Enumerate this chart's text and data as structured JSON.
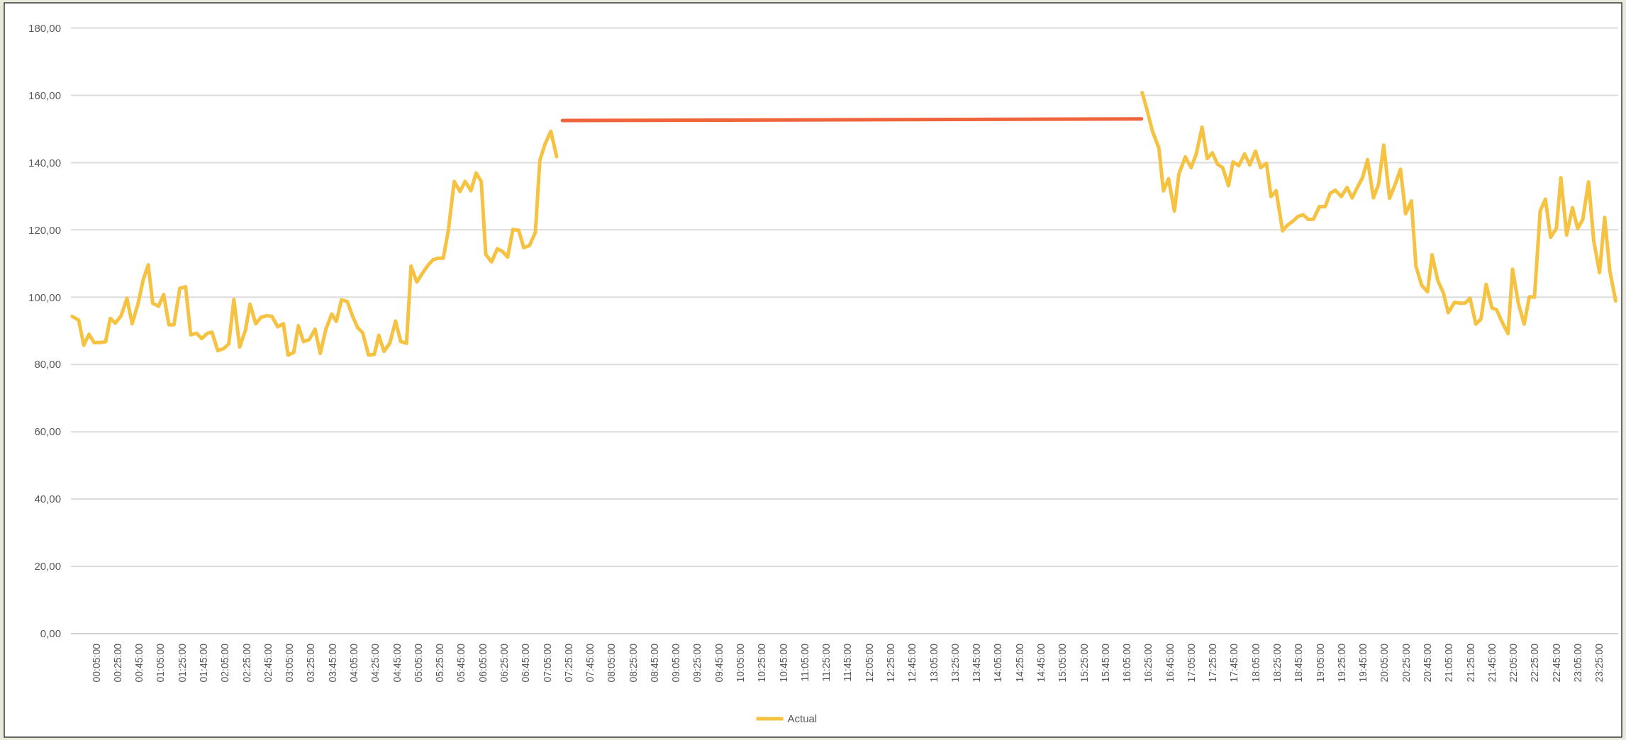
{
  "chart_data": {
    "type": "line",
    "xlim": [
      -0.31,
      23.71
    ],
    "ylim": [
      0,
      180
    ],
    "yticks": [
      {
        "value": 0,
        "label": "0,00"
      },
      {
        "value": 20,
        "label": "20,00"
      },
      {
        "value": 40,
        "label": "40,00"
      },
      {
        "value": 60,
        "label": "60,00"
      },
      {
        "value": 80,
        "label": "80,00"
      },
      {
        "value": 100,
        "label": "100,00"
      },
      {
        "value": 120,
        "label": "120,00"
      },
      {
        "value": 140,
        "label": "140,00"
      },
      {
        "value": 160,
        "label": "160,00"
      },
      {
        "value": 180,
        "label": "180,00"
      }
    ],
    "xticks": [
      {
        "value": 0.0833,
        "label": "00:05:00"
      },
      {
        "value": 0.4167,
        "label": "00:25:00"
      },
      {
        "value": 0.75,
        "label": "00:45:00"
      },
      {
        "value": 1.0833,
        "label": "01:05:00"
      },
      {
        "value": 1.4167,
        "label": "01:25:00"
      },
      {
        "value": 1.75,
        "label": "01:45:00"
      },
      {
        "value": 2.0833,
        "label": "02:05:00"
      },
      {
        "value": 2.4167,
        "label": "02:25:00"
      },
      {
        "value": 2.75,
        "label": "02:45:00"
      },
      {
        "value": 3.0833,
        "label": "03:05:00"
      },
      {
        "value": 3.4167,
        "label": "03:25:00"
      },
      {
        "value": 3.75,
        "label": "03:45:00"
      },
      {
        "value": 4.0833,
        "label": "04:05:00"
      },
      {
        "value": 4.4167,
        "label": "04:25:00"
      },
      {
        "value": 4.75,
        "label": "04:45:00"
      },
      {
        "value": 5.0833,
        "label": "05:05:00"
      },
      {
        "value": 5.4167,
        "label": "05:25:00"
      },
      {
        "value": 5.75,
        "label": "05:45:00"
      },
      {
        "value": 6.0833,
        "label": "06:05:00"
      },
      {
        "value": 6.4167,
        "label": "06:25:00"
      },
      {
        "value": 6.75,
        "label": "06:45:00"
      },
      {
        "value": 7.0833,
        "label": "07:05:00"
      },
      {
        "value": 7.4167,
        "label": "07:25:00"
      },
      {
        "value": 7.75,
        "label": "07:45:00"
      },
      {
        "value": 8.0833,
        "label": "08:05:00"
      },
      {
        "value": 8.4167,
        "label": "08:25:00"
      },
      {
        "value": 8.75,
        "label": "08:45:00"
      },
      {
        "value": 9.0833,
        "label": "09:05:00"
      },
      {
        "value": 9.4167,
        "label": "09:25:00"
      },
      {
        "value": 9.75,
        "label": "09:45:00"
      },
      {
        "value": 10.0833,
        "label": "10:05:00"
      },
      {
        "value": 10.4167,
        "label": "10:25:00"
      },
      {
        "value": 10.75,
        "label": "10:45:00"
      },
      {
        "value": 11.0833,
        "label": "11:05:00"
      },
      {
        "value": 11.4167,
        "label": "11:25:00"
      },
      {
        "value": 11.75,
        "label": "11:45:00"
      },
      {
        "value": 12.0833,
        "label": "12:05:00"
      },
      {
        "value": 12.4167,
        "label": "12:25:00"
      },
      {
        "value": 12.75,
        "label": "12:45:00"
      },
      {
        "value": 13.0833,
        "label": "13:05:00"
      },
      {
        "value": 13.4167,
        "label": "13:25:00"
      },
      {
        "value": 13.75,
        "label": "13:45:00"
      },
      {
        "value": 14.0833,
        "label": "14:05:00"
      },
      {
        "value": 14.4167,
        "label": "14:25:00"
      },
      {
        "value": 14.75,
        "label": "14:45:00"
      },
      {
        "value": 15.0833,
        "label": "15:05:00"
      },
      {
        "value": 15.4167,
        "label": "15:25:00"
      },
      {
        "value": 15.75,
        "label": "15:45:00"
      },
      {
        "value": 16.0833,
        "label": "16:05:00"
      },
      {
        "value": 16.4167,
        "label": "16:25:00"
      },
      {
        "value": 16.75,
        "label": "16:45:00"
      },
      {
        "value": 17.0833,
        "label": "17:05:00"
      },
      {
        "value": 17.4167,
        "label": "17:25:00"
      },
      {
        "value": 17.75,
        "label": "17:45:00"
      },
      {
        "value": 18.0833,
        "label": "18:05:00"
      },
      {
        "value": 18.4167,
        "label": "18:25:00"
      },
      {
        "value": 18.75,
        "label": "18:45:00"
      },
      {
        "value": 19.0833,
        "label": "19:05:00"
      },
      {
        "value": 19.4167,
        "label": "19:25:00"
      },
      {
        "value": 19.75,
        "label": "19:45:00"
      },
      {
        "value": 20.0833,
        "label": "20:05:00"
      },
      {
        "value": 20.4167,
        "label": "20:25:00"
      },
      {
        "value": 20.75,
        "label": "20:45:00"
      },
      {
        "value": 21.0833,
        "label": "21:05:00"
      },
      {
        "value": 21.4167,
        "label": "21:25:00"
      },
      {
        "value": 21.75,
        "label": "21:45:00"
      },
      {
        "value": 22.0833,
        "label": "22:05:00"
      },
      {
        "value": 22.4167,
        "label": "22:25:00"
      },
      {
        "value": 22.75,
        "label": "22:45:00"
      },
      {
        "value": 23.0833,
        "label": "23:05:00"
      },
      {
        "value": 23.4167,
        "label": "23:25:00"
      }
    ],
    "grid": "y",
    "legend": "bottom",
    "marker": "none",
    "line_style": "solid",
    "series": [
      {
        "name": "Actual",
        "color": "#f5c242",
        "x": [
          -0.29,
          -0.19,
          -0.11,
          -0.03,
          0.05,
          0.14,
          0.23,
          0.3,
          0.38,
          0.47,
          0.56,
          0.64,
          0.73,
          0.81,
          0.89,
          0.96,
          1.05,
          1.13,
          1.21,
          1.29,
          1.38,
          1.47,
          1.55,
          1.64,
          1.72,
          1.81,
          1.88,
          1.97,
          2.06,
          2.14,
          2.22,
          2.31,
          2.4,
          2.47,
          2.56,
          2.64,
          2.73,
          2.81,
          2.9,
          2.99,
          3.06,
          3.15,
          3.22,
          3.3,
          3.39,
          3.48,
          3.56,
          3.65,
          3.74,
          3.81,
          3.89,
          3.98,
          4.06,
          4.14,
          4.22,
          4.31,
          4.4,
          4.47,
          4.55,
          4.64,
          4.73,
          4.81,
          4.9,
          4.97,
          5.06,
          5.15,
          5.23,
          5.31,
          5.39,
          5.47,
          5.55,
          5.64,
          5.73,
          5.81,
          5.9,
          5.98,
          6.06,
          6.13,
          6.22,
          6.31,
          6.39,
          6.47,
          6.55,
          6.64,
          6.72,
          6.81,
          6.9,
          6.97,
          7.05,
          7.14,
          7.23,
          7.3,
          16.32,
          16.39,
          16.48,
          16.58,
          16.65,
          16.73,
          16.82,
          16.89,
          16.99,
          17.08,
          17.16,
          17.25,
          17.33,
          17.41,
          17.49,
          17.57,
          17.66,
          17.73,
          17.82,
          17.91,
          17.99,
          18.08,
          18.16,
          18.25,
          18.32,
          18.4,
          18.5,
          18.57,
          18.66,
          18.74,
          18.82,
          18.9,
          18.98,
          19.07,
          19.16,
          19.24,
          19.32,
          19.41,
          19.5,
          19.58,
          19.66,
          19.74,
          19.82,
          19.91,
          19.99,
          20.07,
          20.16,
          20.25,
          20.33,
          20.41,
          20.5,
          20.57,
          20.66,
          20.75,
          20.82,
          20.91,
          21.0,
          21.07,
          21.17,
          21.25,
          21.33,
          21.41,
          21.5,
          21.58,
          21.66,
          21.75,
          21.82,
          21.91,
          22.0,
          22.07,
          22.16,
          22.25,
          22.33,
          22.41,
          22.5,
          22.58,
          22.66,
          22.75,
          22.82,
          22.91,
          23.0,
          23.08,
          23.16,
          23.25,
          23.33,
          23.42,
          23.5,
          23.58,
          23.67
        ],
        "values": [
          94.3,
          93.2,
          85.7,
          89.0,
          86.5,
          86.5,
          86.8,
          93.7,
          92.3,
          94.5,
          99.7,
          92.1,
          97.9,
          105,
          109.6,
          98.2,
          97.3,
          100.8,
          91.8,
          91.8,
          102.6,
          103.1,
          88.8,
          89.3,
          87.7,
          89.3,
          89.6,
          84.1,
          84.7,
          86.1,
          99.3,
          85.2,
          90.2,
          97.9,
          92.1,
          94.0,
          94.5,
          94.3,
          91.2,
          92.1,
          82.8,
          83.6,
          91.5,
          86.8,
          87.4,
          90.5,
          83.3,
          90.6,
          95.0,
          92.8,
          99.2,
          98.7,
          94.5,
          91.0,
          89.4,
          82.8,
          83.0,
          88.7,
          83.9,
          86.3,
          92.9,
          86.8,
          86.3,
          109.2,
          104.5,
          107.2,
          109.4,
          111.1,
          111.6,
          111.6,
          119.9,
          134.4,
          131.4,
          134.4,
          131.7,
          136.9,
          134.4,
          112.7,
          110.5,
          114.4,
          113.6,
          111.9,
          120.1,
          119.9,
          114.7,
          115.4,
          119.3,
          140.7,
          145.5,
          149.3,
          141.8,
          null,
          160.8,
          156.0,
          149.3,
          144.3,
          131.6,
          135.2,
          125.6,
          136.6,
          141.7,
          138.5,
          142.6,
          150.5,
          141.2,
          142.9,
          139.5,
          138.5,
          133.1,
          140.2,
          139.1,
          142.6,
          139.3,
          143.4,
          138.5,
          139.8,
          129.9,
          131.6,
          119.7,
          121.3,
          122.6,
          124.0,
          124.5,
          123.1,
          123.2,
          126.9,
          126.9,
          130.9,
          131.8,
          129.9,
          132.6,
          129.5,
          132.6,
          135.5,
          140.9,
          129.5,
          133.6,
          145.2,
          129.4,
          133.6,
          138.0,
          124.8,
          128.6,
          109.2,
          103.5,
          101.6,
          112.6,
          104.9,
          101.1,
          95.4,
          98.5,
          98.2,
          98.2,
          99.7,
          92.0,
          93.5,
          103.8,
          96.8,
          96.3,
          92.5,
          89.2,
          108.3,
          98.2,
          92.0,
          100.1,
          100.0,
          125.7,
          129.1,
          117.8,
          120.4,
          135.5,
          118.5,
          126.6,
          120.4,
          123.1,
          134.3,
          116.8,
          107.3,
          123.7,
          107.8,
          98.9
        ]
      },
      {
        "color": "#f0643c",
        "x": [
          7.32,
          16.31
        ],
        "values": [
          152.5,
          153.0
        ]
      }
    ]
  }
}
